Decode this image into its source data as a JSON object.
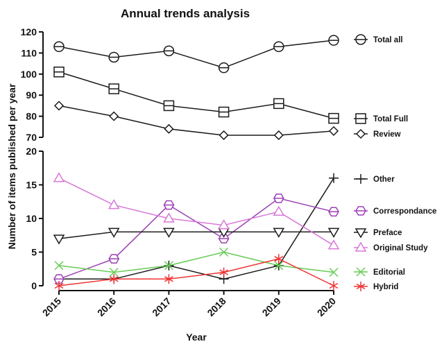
{
  "chart_data": {
    "type": "line",
    "title": "Annual trends analysis",
    "xlabel": "Year",
    "ylabel": "Number of items published per year",
    "x": [
      "2015",
      "2016",
      "2017",
      "2018",
      "2019",
      "2020"
    ],
    "panels": [
      {
        "ylim": [
          70,
          120
        ],
        "yticks": [
          70,
          80,
          90,
          100,
          110,
          120
        ],
        "series": [
          {
            "name": "Total all",
            "values": [
              113,
              108,
              111,
              103,
              113,
              116
            ],
            "color": "#1a1a1a",
            "marker": "circle-line"
          },
          {
            "name": "Total Full",
            "values": [
              101,
              93,
              85,
              82,
              86,
              79
            ],
            "color": "#1a1a1a",
            "marker": "square-line"
          },
          {
            "name": "Review",
            "values": [
              85,
              80,
              74,
              71,
              71,
              73
            ],
            "color": "#1a1a1a",
            "marker": "diamond"
          }
        ]
      },
      {
        "ylim": [
          0,
          20
        ],
        "yticks": [
          0,
          5,
          10,
          15,
          20
        ],
        "series": [
          {
            "name": "Other",
            "values": [
              1,
              1,
              3,
              1,
              3,
              16
            ],
            "color": "#1a1a1a",
            "marker": "plus"
          },
          {
            "name": "Correspondance",
            "values": [
              1,
              4,
              12,
              7,
              13,
              11
            ],
            "color": "#9b3fb4",
            "marker": "hexagon-line"
          },
          {
            "name": "Preface",
            "values": [
              7,
              8,
              8,
              8,
              8,
              8
            ],
            "color": "#1a1a1a",
            "marker": "triangle-down"
          },
          {
            "name": "Original Study",
            "values": [
              16,
              12,
              10,
              9,
              11,
              6
            ],
            "color": "#d977d9",
            "marker": "triangle-up"
          },
          {
            "name": "Editorial",
            "values": [
              3,
              2,
              3,
              5,
              3,
              2
            ],
            "color": "#66cc55",
            "marker": "x"
          },
          {
            "name": "Hybrid",
            "values": [
              0,
              1,
              1,
              2,
              4,
              0
            ],
            "color": "#ee3333",
            "marker": "asterisk"
          }
        ]
      }
    ],
    "legend_position": "right",
    "grid": false
  }
}
